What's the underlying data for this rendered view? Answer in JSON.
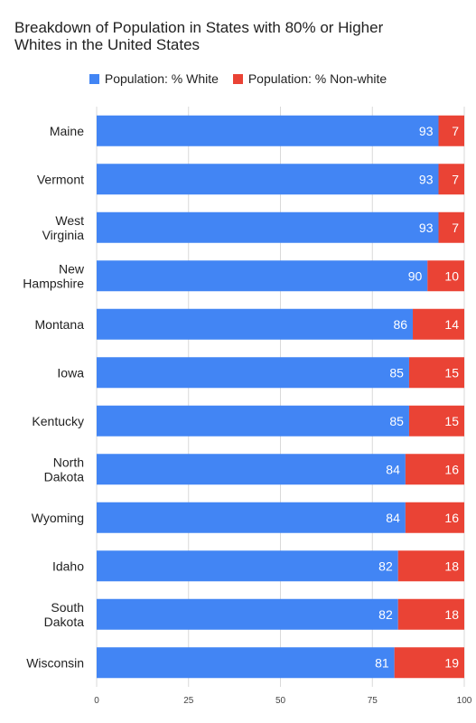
{
  "chart_data": {
    "type": "bar",
    "orientation": "horizontal",
    "stacked": true,
    "title_lines": [
      "Breakdown of Population in States with 80% or Higher",
      "Whites in the United States"
    ],
    "xlabel": "",
    "ylabel": "",
    "xlim": [
      0,
      100
    ],
    "x_ticks": [
      "0",
      "25",
      "50",
      "75",
      "100"
    ],
    "grid": true,
    "legend_position": "top",
    "categories": [
      [
        "Maine"
      ],
      [
        "Vermont"
      ],
      [
        "West",
        "Virginia"
      ],
      [
        "New",
        "Hampshire"
      ],
      [
        "Montana"
      ],
      [
        "Iowa"
      ],
      [
        "Kentucky"
      ],
      [
        "North",
        "Dakota"
      ],
      [
        "Wyoming"
      ],
      [
        "Idaho"
      ],
      [
        "South",
        "Dakota"
      ],
      [
        "Wisconsin"
      ]
    ],
    "series": [
      {
        "name": "Population: % White",
        "color": "#4285f4",
        "values": [
          93,
          93,
          93,
          90,
          86,
          85,
          85,
          84,
          84,
          82,
          82,
          81
        ]
      },
      {
        "name": "Population: % Non-white",
        "color": "#ea4335",
        "values": [
          7,
          7,
          7,
          10,
          14,
          15,
          15,
          16,
          16,
          18,
          18,
          19
        ]
      }
    ]
  }
}
